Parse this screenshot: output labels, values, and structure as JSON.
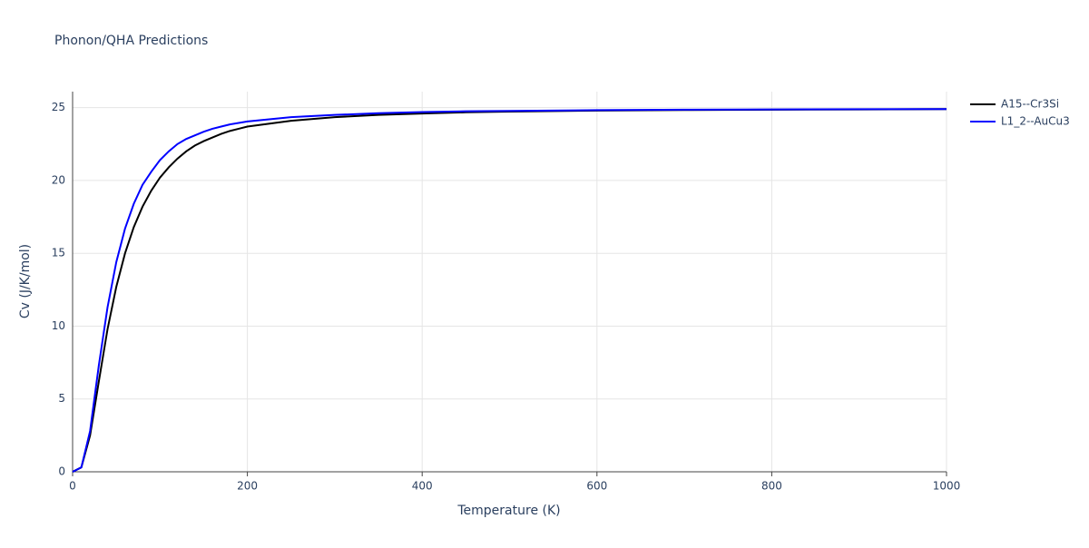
{
  "chart_data": {
    "type": "line",
    "title": "Phonon/QHA Predictions",
    "x_label": "Temperature (K)",
    "y_label": "Cv (J/K/mol)",
    "x": [
      0,
      10,
      20,
      30,
      40,
      50,
      60,
      70,
      80,
      90,
      100,
      110,
      120,
      130,
      140,
      150,
      160,
      170,
      180,
      190,
      200,
      250,
      300,
      350,
      400,
      450,
      500,
      600,
      700,
      800,
      900,
      1000
    ],
    "series": [
      {
        "name": "A15--Cr3Si",
        "color": "#000000",
        "values": [
          0,
          0.3,
          2.5,
          6.2,
          9.8,
          12.7,
          15.0,
          16.8,
          18.2,
          19.3,
          20.2,
          20.9,
          21.5,
          22.0,
          22.4,
          22.7,
          22.95,
          23.2,
          23.4,
          23.55,
          23.7,
          24.1,
          24.35,
          24.5,
          24.6,
          24.68,
          24.73,
          24.8,
          24.84,
          24.86,
          24.88,
          24.9
        ]
      },
      {
        "name": "L1_2--AuCu3",
        "color": "#0000ff",
        "values": [
          0,
          0.3,
          2.8,
          7.3,
          11.3,
          14.4,
          16.7,
          18.4,
          19.7,
          20.6,
          21.4,
          22.0,
          22.5,
          22.85,
          23.1,
          23.35,
          23.55,
          23.7,
          23.85,
          23.95,
          24.05,
          24.35,
          24.5,
          24.62,
          24.7,
          24.75,
          24.78,
          24.83,
          24.86,
          24.88,
          24.89,
          24.9
        ]
      }
    ],
    "xlim": [
      0,
      1000
    ],
    "xticks": [
      0,
      200,
      400,
      600,
      800,
      1000
    ],
    "ylim": [
      0,
      26.1
    ],
    "yticks": [
      0,
      5,
      10,
      15,
      20,
      25
    ],
    "grid": true,
    "legend": "right"
  }
}
